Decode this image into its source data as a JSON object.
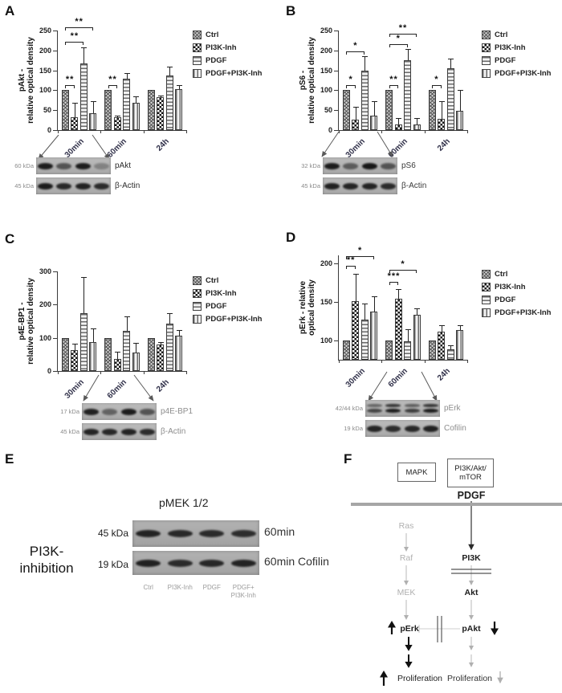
{
  "legend": {
    "items": [
      {
        "label": "Ctrl",
        "pattern": "diag"
      },
      {
        "label": "PI3K-Inh",
        "pattern": "check"
      },
      {
        "label": "PDGF",
        "pattern": "hlines"
      },
      {
        "label": "PDGF+PI3K-Inh",
        "pattern": "vlines"
      }
    ]
  },
  "panels": {
    "A": {
      "label": "A",
      "chart_data": {
        "type": "bar",
        "ylabel_line1": "pAkt -",
        "ylabel_line2": "relative optical density",
        "categories": [
          "30min",
          "60min",
          "24h"
        ],
        "ylim": [
          0,
          250
        ],
        "yticks": [
          0,
          50,
          100,
          150,
          200,
          250
        ],
        "series": [
          {
            "name": "Ctrl",
            "pattern": "diag",
            "values": [
              100,
              100,
              100
            ],
            "errors": [
              0,
              0,
              0
            ]
          },
          {
            "name": "PI3K-Inh",
            "pattern": "check",
            "values": [
              33,
              32,
              83
            ],
            "errors": [
              36,
              4,
              3
            ]
          },
          {
            "name": "PDGF",
            "pattern": "hlines",
            "values": [
              167,
              130,
              138
            ],
            "errors": [
              41,
              14,
              22
            ]
          },
          {
            "name": "PDGF+PI3K-Inh",
            "pattern": "vlines",
            "values": [
              43,
              68,
              103
            ],
            "errors": [
              30,
              16,
              10
            ]
          }
        ],
        "significance": [
          {
            "group": 0,
            "from": 0,
            "to": 1,
            "y": 112,
            "label": "**"
          },
          {
            "group": 0,
            "from": 0,
            "to": 2,
            "y": 222,
            "label": "**"
          },
          {
            "group": 0,
            "from": 0,
            "to": 3,
            "y": 258,
            "label": "**"
          },
          {
            "group": 1,
            "from": 0,
            "to": 1,
            "y": 112,
            "label": "**"
          }
        ]
      },
      "blot": {
        "pointer_from": "30min",
        "label_color": "#2b2b2b",
        "rows": [
          {
            "kda": "60 kDa",
            "protein": "pAkt",
            "bands": [
              0.95,
              0.6,
              0.95,
              0.3
            ]
          },
          {
            "kda": "45 kDa",
            "protein": "β-Actin",
            "bands": [
              0.95,
              0.88,
              0.92,
              0.86
            ]
          }
        ]
      }
    },
    "B": {
      "label": "B",
      "chart_data": {
        "type": "bar",
        "ylabel_line1": "pS6 -",
        "ylabel_line2": "relative optical density",
        "categories": [
          "30min",
          "60min",
          "24h"
        ],
        "ylim": [
          0,
          250
        ],
        "yticks": [
          0,
          50,
          100,
          150,
          200,
          250
        ],
        "series": [
          {
            "name": "Ctrl",
            "pattern": "diag",
            "values": [
              100,
              100,
              100
            ],
            "errors": [
              0,
              0,
              0
            ]
          },
          {
            "name": "PI3K-Inh",
            "pattern": "check",
            "values": [
              27,
              14,
              29
            ],
            "errors": [
              31,
              17,
              44
            ]
          },
          {
            "name": "PDGF",
            "pattern": "hlines",
            "values": [
              150,
              175,
              155
            ],
            "errors": [
              35,
              28,
              25
            ]
          },
          {
            "name": "PDGF+PI3K-Inh",
            "pattern": "vlines",
            "values": [
              37,
              15,
              49
            ],
            "errors": [
              36,
              16,
              51
            ]
          }
        ],
        "significance": [
          {
            "group": 0,
            "from": 0,
            "to": 1,
            "y": 112,
            "label": "*"
          },
          {
            "group": 0,
            "from": 0,
            "to": 2,
            "y": 198,
            "label": "*"
          },
          {
            "group": 1,
            "from": 0,
            "to": 1,
            "y": 112,
            "label": "**"
          },
          {
            "group": 1,
            "from": 0,
            "to": 2,
            "y": 215,
            "label": "*"
          },
          {
            "group": 1,
            "from": 0,
            "to": 3,
            "y": 242,
            "label": "**"
          },
          {
            "group": 2,
            "from": 0,
            "to": 1,
            "y": 112,
            "label": "*"
          }
        ]
      },
      "blot": {
        "pointer_from": "30min",
        "label_color": "#3a3a3a",
        "rows": [
          {
            "kda": "32 kDa",
            "protein": "pS6",
            "bands": [
              0.95,
              0.55,
              0.98,
              0.6
            ]
          },
          {
            "kda": "45 kDa",
            "protein": "β-Actin",
            "bands": [
              0.92,
              0.9,
              0.9,
              0.85
            ]
          }
        ]
      }
    },
    "C": {
      "label": "C",
      "chart_data": {
        "type": "bar",
        "ylabel_line1": "p4E-BP1 -",
        "ylabel_line2": "relative optical density",
        "categories": [
          "30min",
          "60min",
          "24h"
        ],
        "ylim": [
          0,
          300
        ],
        "yticks": [
          0,
          100,
          200,
          300
        ],
        "series": [
          {
            "name": "Ctrl",
            "pattern": "diag",
            "values": [
              100,
              100,
              100
            ],
            "errors": [
              0,
              0,
              0
            ]
          },
          {
            "name": "PI3K-Inh",
            "pattern": "check",
            "values": [
              62,
              37,
              79
            ],
            "errors": [
              20,
              20,
              8
            ]
          },
          {
            "name": "PDGF",
            "pattern": "hlines",
            "values": [
              175,
              122,
              143
            ],
            "errors": [
              107,
              43,
              30
            ]
          },
          {
            "name": "PDGF+PI3K-Inh",
            "pattern": "vlines",
            "values": [
              88,
              55,
              106
            ],
            "errors": [
              40,
              30,
              18
            ]
          }
        ],
        "significance": []
      },
      "blot": {
        "pointer_from": "60min",
        "label_color": "#8d8d8d",
        "rows": [
          {
            "kda": "17 kDa",
            "protein": "p4E-BP1",
            "bands": [
              0.92,
              0.5,
              0.95,
              0.6
            ]
          },
          {
            "kda": "45 kDa",
            "protein": "β-Actin",
            "bands": [
              0.9,
              0.88,
              0.9,
              0.85
            ]
          }
        ]
      }
    },
    "D": {
      "label": "D",
      "chart_data": {
        "type": "bar",
        "ylabel_line1": "pErk - relative",
        "ylabel_line2": "optical density",
        "categories": [
          "30min",
          "60min",
          "24h"
        ],
        "ylim": [
          75,
          210
        ],
        "yticks": [
          100,
          150,
          200
        ],
        "series": [
          {
            "name": "Ctrl",
            "pattern": "diag",
            "values": [
              100,
              100,
              100
            ],
            "errors": [
              0,
              0,
              0
            ]
          },
          {
            "name": "PI3K-Inh",
            "pattern": "check",
            "values": [
              151,
              154,
              111
            ],
            "errors": [
              35,
              12,
              9
            ]
          },
          {
            "name": "PDGF",
            "pattern": "hlines",
            "values": [
              127,
              99,
              88
            ],
            "errors": [
              21,
              15,
              6
            ]
          },
          {
            "name": "PDGF+PI3K-Inh",
            "pattern": "vlines",
            "values": [
              137,
              133,
              113
            ],
            "errors": [
              20,
              8,
              7
            ]
          }
        ],
        "significance": [
          {
            "group": 0,
            "from": 0,
            "to": 1,
            "y": 196,
            "label": "**"
          },
          {
            "group": 0,
            "from": 0,
            "to": 3,
            "y": 209,
            "label": "*"
          },
          {
            "group": 1,
            "from": 0,
            "to": 1,
            "y": 176,
            "label": "***"
          },
          {
            "group": 1,
            "from": 0,
            "to": 3,
            "y": 191,
            "label": "*"
          }
        ]
      },
      "blot": {
        "pointer_from": "60min",
        "label_color": "#8d8d8d",
        "rows": [
          {
            "kda": "42/44 kDa",
            "protein": "pErk",
            "double": true,
            "bands": [
              0.7,
              0.95,
              0.75,
              0.95
            ],
            "bands_upper": [
              0.5,
              0.8,
              0.55,
              0.8
            ]
          },
          {
            "kda": "19 kDa",
            "protein": "Cofilin",
            "bands": [
              0.9,
              0.85,
              0.88,
              0.92
            ]
          }
        ]
      }
    },
    "E": {
      "label": "E",
      "title": "pMEK 1/2",
      "side_label_line1": "PI3K-",
      "side_label_line2": "inhibition",
      "rows": [
        {
          "kda": "45 kDa",
          "right_label": "60min",
          "bands": [
            0.9,
            0.87,
            0.85,
            0.84
          ]
        },
        {
          "kda": "19 kDa",
          "right_label": "60min Cofilin",
          "bands": [
            0.92,
            0.85,
            0.88,
            0.9
          ]
        }
      ],
      "lane_labels": [
        "Ctrl",
        "PI3K-Inh",
        "PDGF",
        "PDGF+\nPI3K-Inh"
      ]
    },
    "F": {
      "label": "F",
      "box_mapk": "MAPK",
      "box_pi3k_line1": "PI3K/Akt/",
      "box_pi3k_line2": "mTOR",
      "pdgf": "PDGF",
      "ras": "Ras",
      "raf": "Raf",
      "mek": "MEK",
      "pi3k": "PI3K",
      "akt": "Akt",
      "perk": "pErk",
      "pakt": "pAkt",
      "prolif_left": "Proliferation",
      "prolif_right": "Proliferation",
      "membrane_color": "#a6a6a6",
      "inactive_color": "#b0b0b0"
    }
  }
}
